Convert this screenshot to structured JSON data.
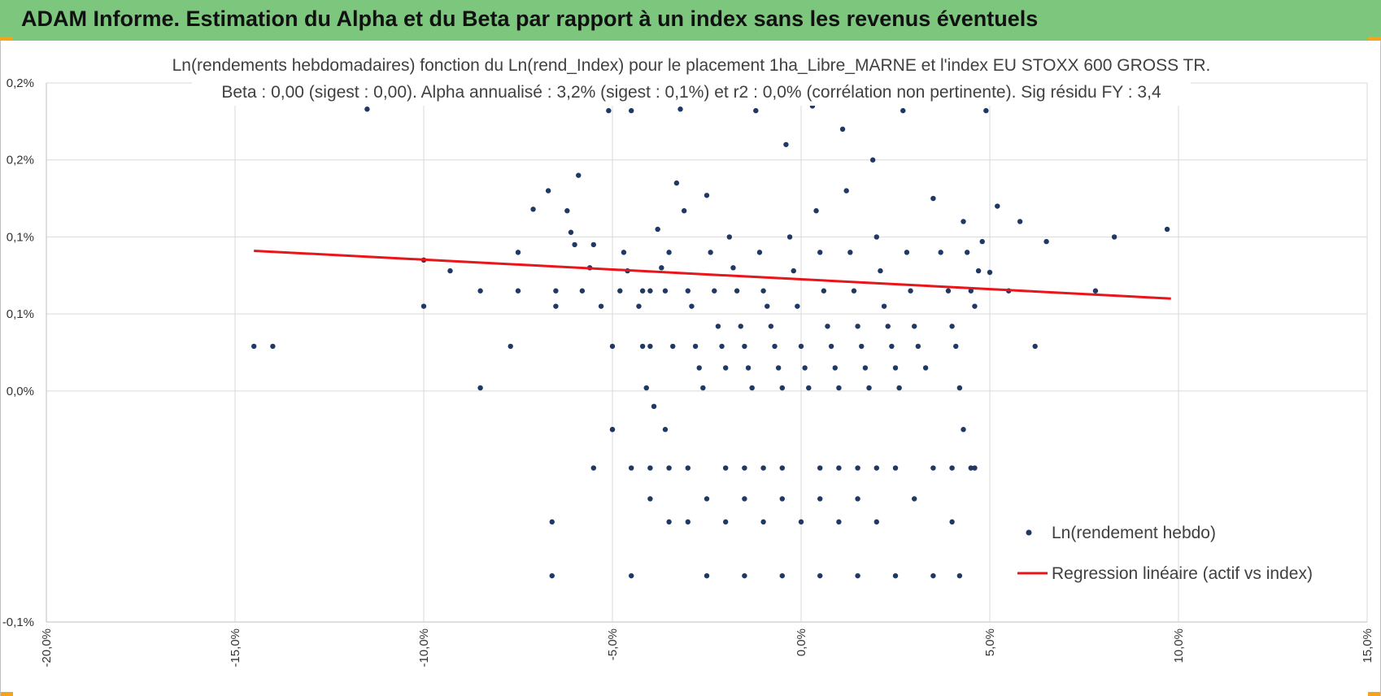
{
  "header": {
    "title": "ADAM Informe. Estimation du Alpha et du Beta par rapport à un index sans les revenus éventuels",
    "bg_color": "#7dc67e",
    "corner_color": "#f2a516"
  },
  "chart_data": {
    "type": "scatter",
    "title_line1": "Ln(rendements hebdomadaires) fonction du Ln(rend_Index) pour le placement 1ha_Libre_MARNE et l'index EU STOXX 600 GROSS TR.",
    "title_line2": "Beta : 0,00 (sigest : 0,00).  Alpha annualisé : 3,2% (sigest : 0,1%) et r2 : 0,0% (corrélation non pertinente). Sig résidu FY : 3,4",
    "xlim": [
      -0.2,
      0.15
    ],
    "ylim": [
      -0.001,
      0.0025
    ],
    "x_ticks": [
      {
        "value": -0.2,
        "label": "-20,0%"
      },
      {
        "value": -0.15,
        "label": "-15,0%"
      },
      {
        "value": -0.1,
        "label": "-10,0%"
      },
      {
        "value": -0.05,
        "label": "-5,0%"
      },
      {
        "value": 0.0,
        "label": "0,0%"
      },
      {
        "value": 0.05,
        "label": "5,0%"
      },
      {
        "value": 0.1,
        "label": "10,0%"
      },
      {
        "value": 0.15,
        "label": "15,0%"
      }
    ],
    "y_ticks": [
      {
        "value": 0.0025,
        "label": "0,2%"
      },
      {
        "value": 0.002,
        "label": "0,2%"
      },
      {
        "value": 0.0015,
        "label": "0,1%"
      },
      {
        "value": 0.001,
        "label": "0,1%"
      },
      {
        "value": 0.0005,
        "label": "0,0%"
      },
      {
        "value": -0.001,
        "label": "-0,1%"
      }
    ],
    "grid": true,
    "series": [
      {
        "name": "Ln(rendement hebdo)",
        "color": "#203864",
        "points": [
          [
            -0.145,
            0.00079
          ],
          [
            -0.14,
            0.00079
          ],
          [
            -0.115,
            0.00233
          ],
          [
            -0.1,
            0.00135
          ],
          [
            -0.1,
            0.00105
          ],
          [
            -0.093,
            0.00128
          ],
          [
            -0.085,
            0.00115
          ],
          [
            -0.085,
            0.00052
          ],
          [
            -0.077,
            0.00079
          ],
          [
            -0.075,
            0.0014
          ],
          [
            -0.075,
            0.00115
          ],
          [
            -0.071,
            0.00168
          ],
          [
            -0.067,
            0.0018
          ],
          [
            -0.066,
            -0.00035
          ],
          [
            -0.065,
            0.00115
          ],
          [
            -0.065,
            0.00105
          ],
          [
            -0.062,
            0.00167
          ],
          [
            -0.061,
            0.00153
          ],
          [
            -0.06,
            0.00145
          ],
          [
            -0.059,
            0.0019
          ],
          [
            -0.058,
            0.00115
          ],
          [
            -0.056,
            0.0013
          ],
          [
            -0.055,
            0.00145
          ],
          [
            -0.055,
            0.0
          ],
          [
            -0.053,
            0.00105
          ],
          [
            -0.051,
            0.00232
          ],
          [
            -0.05,
            0.00025
          ],
          [
            -0.05,
            0.00079
          ],
          [
            -0.048,
            0.00115
          ],
          [
            -0.047,
            0.0014
          ],
          [
            -0.046,
            0.00128
          ],
          [
            -0.045,
            0.00232
          ],
          [
            -0.043,
            0.00105
          ],
          [
            -0.042,
            0.00115
          ],
          [
            -0.042,
            0.00079
          ],
          [
            -0.041,
            0.00052
          ],
          [
            -0.04,
            0.00115
          ],
          [
            -0.04,
            0.00079
          ],
          [
            -0.039,
            0.0004
          ],
          [
            -0.038,
            0.00155
          ],
          [
            -0.037,
            0.0013
          ],
          [
            -0.036,
            0.00115
          ],
          [
            -0.035,
            0.0014
          ],
          [
            -0.034,
            0.00079
          ],
          [
            -0.033,
            0.00185
          ],
          [
            -0.032,
            0.00233
          ],
          [
            -0.031,
            0.00167
          ],
          [
            -0.03,
            0.00115
          ],
          [
            -0.029,
            0.00105
          ],
          [
            -0.028,
            0.00079
          ],
          [
            -0.027,
            0.00065
          ],
          [
            -0.026,
            0.00052
          ],
          [
            -0.025,
            0.00177
          ],
          [
            -0.024,
            0.0014
          ],
          [
            -0.023,
            0.00115
          ],
          [
            -0.022,
            0.00092
          ],
          [
            -0.021,
            0.00079
          ],
          [
            -0.02,
            0.00065
          ],
          [
            -0.019,
            0.0015
          ],
          [
            -0.018,
            0.0013
          ],
          [
            -0.017,
            0.00115
          ],
          [
            -0.016,
            0.00092
          ],
          [
            -0.015,
            0.00079
          ],
          [
            -0.014,
            0.00065
          ],
          [
            -0.013,
            0.00052
          ],
          [
            -0.012,
            0.00232
          ],
          [
            -0.011,
            0.0014
          ],
          [
            -0.01,
            0.00115
          ],
          [
            -0.009,
            0.00105
          ],
          [
            -0.008,
            0.00092
          ],
          [
            -0.007,
            0.00079
          ],
          [
            -0.006,
            0.00065
          ],
          [
            -0.005,
            0.00052
          ],
          [
            -0.004,
            0.0021
          ],
          [
            -0.003,
            0.0015
          ],
          [
            -0.002,
            0.00128
          ],
          [
            -0.001,
            0.00105
          ],
          [
            0.0,
            0.00079
          ],
          [
            0.001,
            0.00065
          ],
          [
            0.002,
            0.00052
          ],
          [
            0.003,
            0.00235
          ],
          [
            0.004,
            0.00167
          ],
          [
            0.005,
            0.0014
          ],
          [
            0.006,
            0.00115
          ],
          [
            0.007,
            0.00092
          ],
          [
            0.008,
            0.00079
          ],
          [
            0.009,
            0.00065
          ],
          [
            0.01,
            0.00052
          ],
          [
            0.011,
            0.0022
          ],
          [
            0.012,
            0.0018
          ],
          [
            0.013,
            0.0014
          ],
          [
            0.014,
            0.00115
          ],
          [
            0.015,
            0.00092
          ],
          [
            0.016,
            0.00079
          ],
          [
            0.017,
            0.00065
          ],
          [
            0.018,
            0.00052
          ],
          [
            0.019,
            0.002
          ],
          [
            0.02,
            0.0015
          ],
          [
            0.021,
            0.00128
          ],
          [
            0.022,
            0.00105
          ],
          [
            0.023,
            0.00092
          ],
          [
            0.024,
            0.00079
          ],
          [
            0.025,
            0.00065
          ],
          [
            0.026,
            0.00052
          ],
          [
            0.027,
            0.00232
          ],
          [
            0.028,
            0.0014
          ],
          [
            0.029,
            0.00115
          ],
          [
            0.03,
            0.00092
          ],
          [
            0.031,
            0.00079
          ],
          [
            0.033,
            0.00065
          ],
          [
            0.035,
            0.00175
          ],
          [
            0.037,
            0.0014
          ],
          [
            0.039,
            0.00115
          ],
          [
            0.04,
            0.00092
          ],
          [
            0.041,
            0.00079
          ],
          [
            0.042,
            0.00052
          ],
          [
            0.043,
            0.0016
          ],
          [
            0.044,
            0.0014
          ],
          [
            0.045,
            0.00115
          ],
          [
            0.046,
            0.00105
          ],
          [
            0.047,
            0.00128
          ],
          [
            0.048,
            0.00147
          ],
          [
            0.049,
            0.00232
          ],
          [
            0.05,
            0.00127
          ],
          [
            0.052,
            0.0017
          ],
          [
            0.055,
            0.00115
          ],
          [
            0.058,
            0.0016
          ],
          [
            0.062,
            0.00079
          ],
          [
            0.065,
            0.00147
          ],
          [
            0.072,
            0.00245
          ],
          [
            0.078,
            0.00115
          ],
          [
            0.083,
            0.0015
          ],
          [
            0.097,
            0.00155
          ],
          [
            -0.03,
            0.0
          ],
          [
            -0.02,
            0.0
          ],
          [
            -0.015,
            0.0
          ],
          [
            -0.01,
            0.0
          ],
          [
            -0.005,
            0.0
          ],
          [
            0.005,
            0.0
          ],
          [
            0.01,
            0.0
          ],
          [
            0.015,
            0.0
          ],
          [
            0.02,
            0.0
          ],
          [
            0.025,
            0.0
          ],
          [
            0.035,
            0.0
          ],
          [
            0.04,
            0.0
          ],
          [
            0.045,
            0.0
          ],
          [
            -0.04,
            0.0
          ],
          [
            -0.035,
            0.0
          ],
          [
            -0.025,
            -0.0002
          ],
          [
            -0.015,
            -0.0002
          ],
          [
            -0.005,
            -0.0002
          ],
          [
            0.005,
            -0.0002
          ],
          [
            0.015,
            -0.0002
          ],
          [
            0.03,
            -0.0002
          ],
          [
            -0.04,
            -0.0002
          ],
          [
            -0.03,
            -0.00035
          ],
          [
            -0.02,
            -0.00035
          ],
          [
            -0.01,
            -0.00035
          ],
          [
            0.0,
            -0.00035
          ],
          [
            0.01,
            -0.00035
          ],
          [
            0.02,
            -0.00035
          ],
          [
            0.04,
            -0.00035
          ],
          [
            -0.035,
            -0.00035
          ],
          [
            -0.025,
            -0.0007
          ],
          [
            -0.015,
            -0.0007
          ],
          [
            -0.005,
            -0.0007
          ],
          [
            0.005,
            -0.0007
          ],
          [
            0.015,
            -0.0007
          ],
          [
            0.025,
            -0.0007
          ],
          [
            0.035,
            -0.0007
          ],
          [
            -0.045,
            -0.0007
          ],
          [
            -0.066,
            -0.0007
          ],
          [
            0.042,
            -0.0007
          ],
          [
            -0.036,
            0.00025
          ],
          [
            0.043,
            0.00025
          ],
          [
            -0.05,
            0.00025
          ],
          [
            0.046,
            0.0
          ],
          [
            -0.045,
            0.0
          ]
        ]
      },
      {
        "name": "Regression linéaire (actif vs index)",
        "type": "line",
        "color": "#e8161b",
        "points": [
          [
            -0.145,
            0.00141
          ],
          [
            0.098,
            0.0011
          ]
        ]
      }
    ],
    "legend": {
      "position": "bottom-right",
      "items": [
        {
          "label": "Ln(rendement hebdo)",
          "symbol": "dot"
        },
        {
          "label": "Regression linéaire (actif vs index)",
          "symbol": "line"
        }
      ]
    }
  }
}
